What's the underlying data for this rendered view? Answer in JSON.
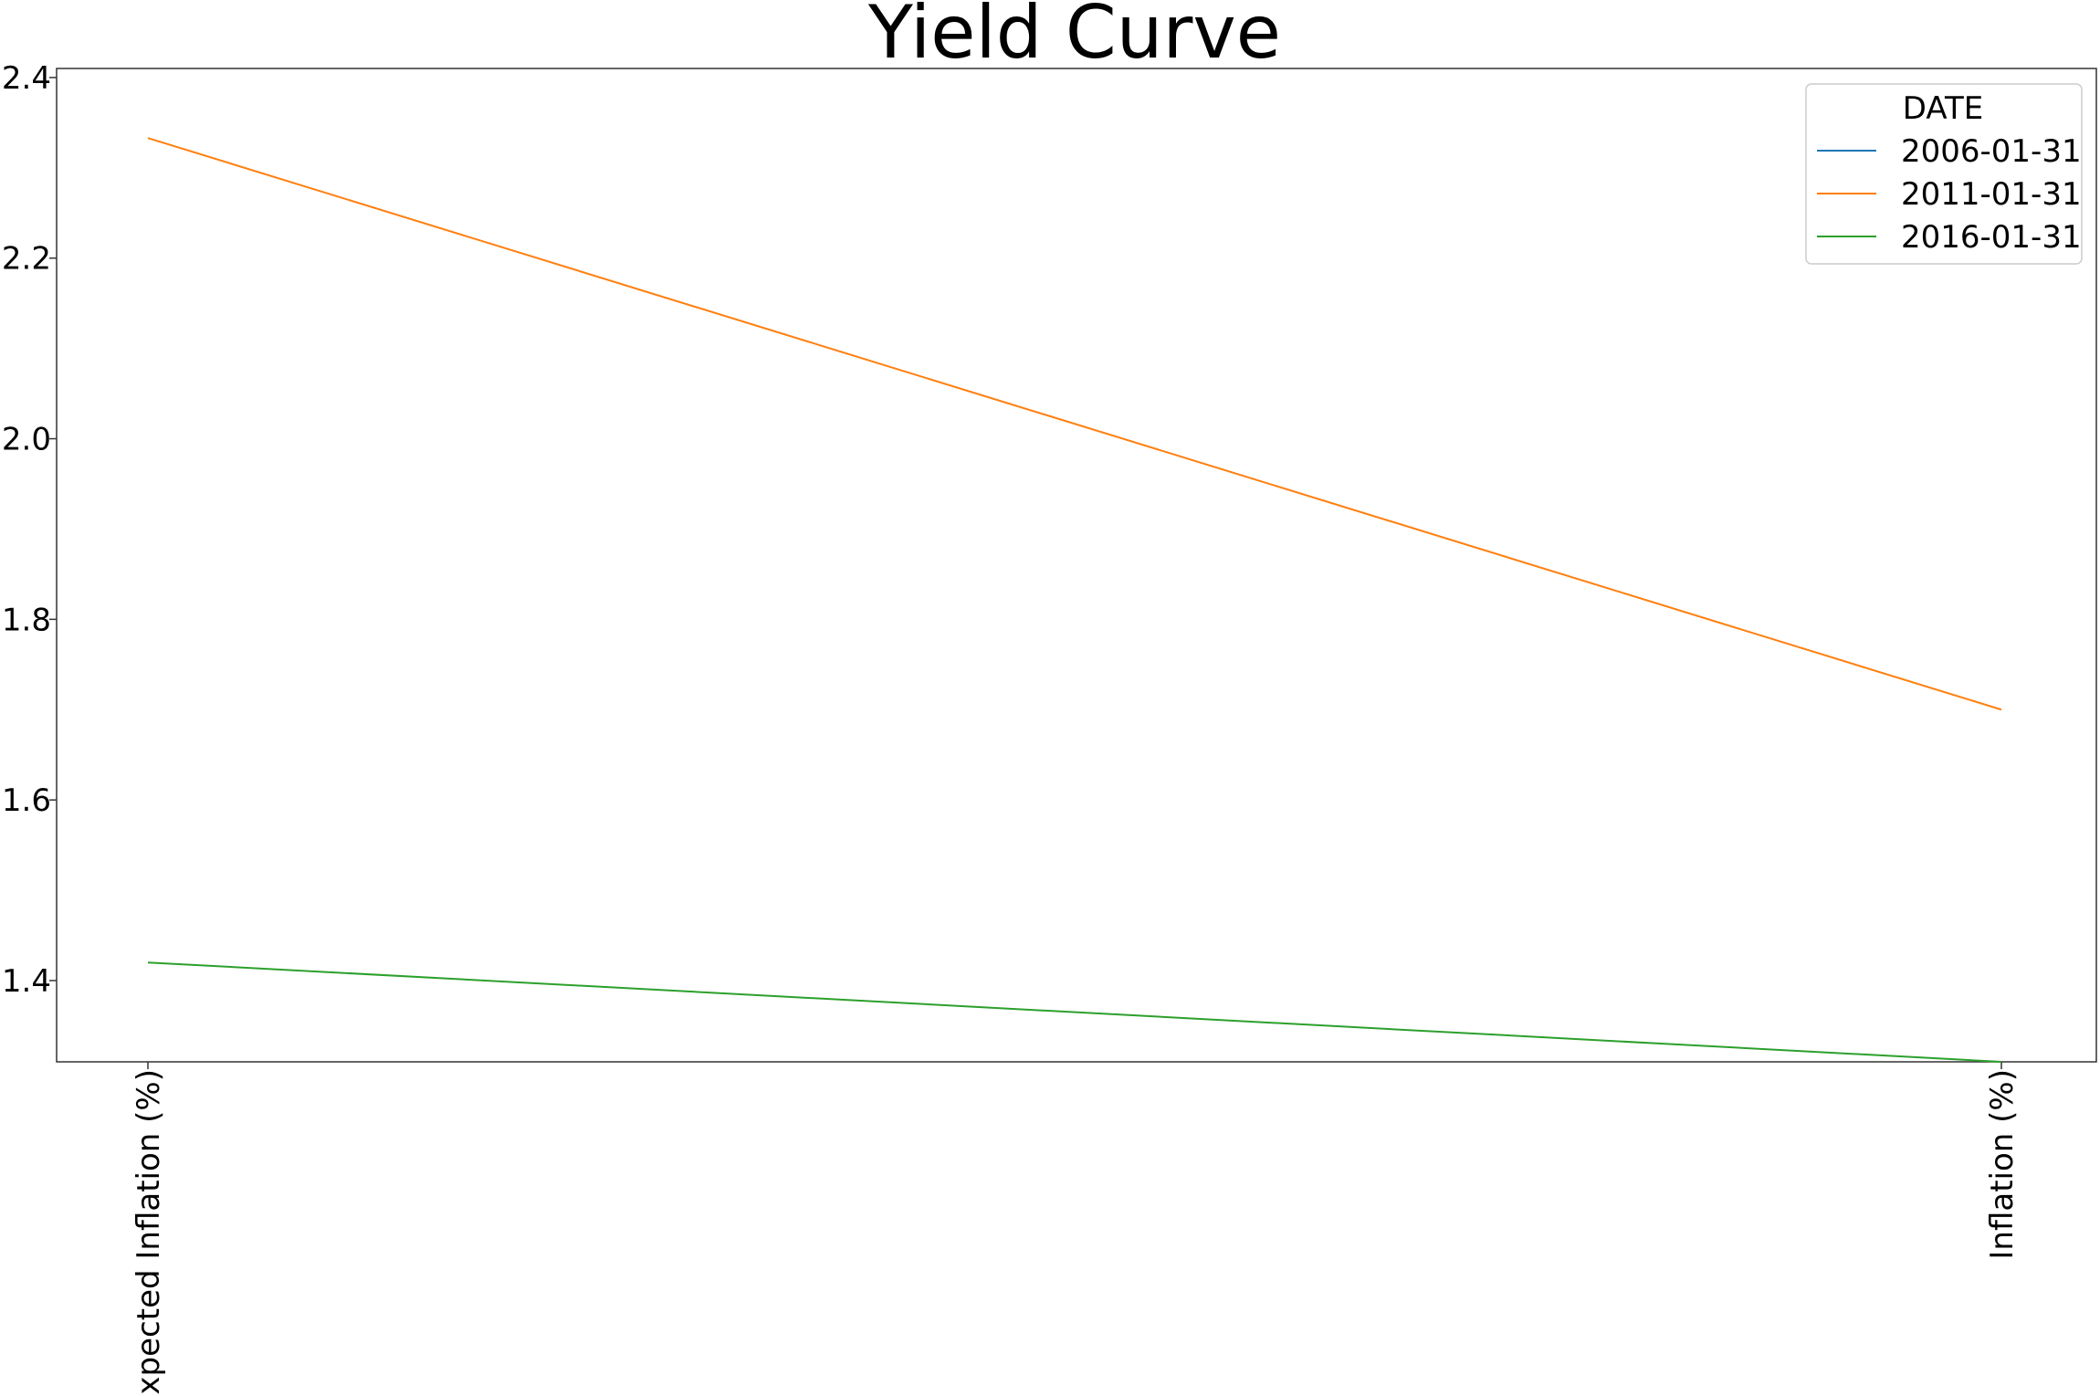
{
  "chart_data": {
    "type": "line",
    "title": "Yield Curve",
    "xlabel": "",
    "ylabel": "",
    "categories": [
      "Expected Inflation (%)",
      "Inflation (%)"
    ],
    "ylim": [
      1.31,
      2.41
    ],
    "yticks": [
      "1.4",
      "1.6",
      "1.8",
      "2.0",
      "2.2",
      "2.4"
    ],
    "grid": false,
    "legend": {
      "title": "DATE",
      "placement": "top-right"
    },
    "series": [
      {
        "name": "2006-01-31",
        "color": "#1f77b4",
        "values": [
          null,
          null
        ]
      },
      {
        "name": "2011-01-31",
        "color": "#ff7f0e",
        "values": [
          2.333,
          1.7
        ]
      },
      {
        "name": "2016-01-31",
        "color": "#2ca02c",
        "values": [
          1.42,
          1.31
        ]
      }
    ]
  }
}
